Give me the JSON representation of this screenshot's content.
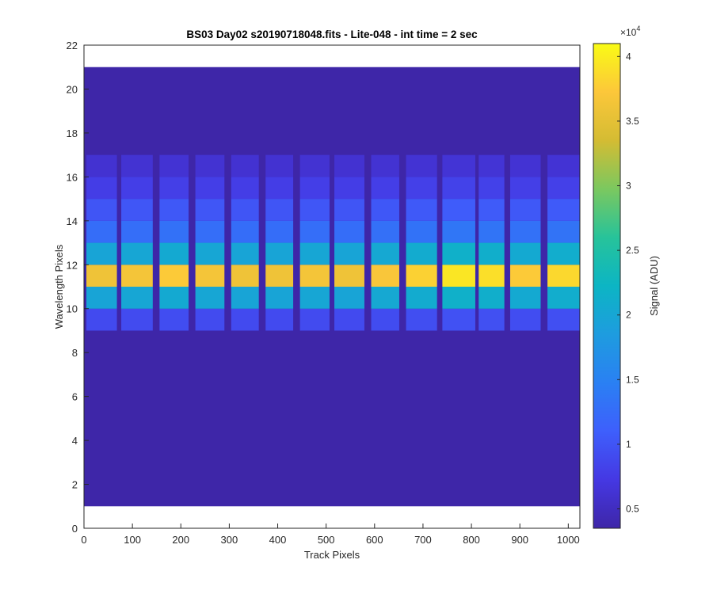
{
  "chart_data": {
    "type": "heatmap",
    "title": "BS03 Day02  s20190718048.fits - Lite-048 - int time = 2 sec",
    "xlabel": "Track Pixels",
    "ylabel": "Wavelength Pixels",
    "xlim": [
      0,
      1024
    ],
    "ylim": [
      0,
      22
    ],
    "x_ticks": [
      "0",
      "100",
      "200",
      "300",
      "400",
      "500",
      "600",
      "700",
      "800",
      "900",
      "1000"
    ],
    "y_ticks": [
      "0",
      "2",
      "4",
      "6",
      "8",
      "10",
      "12",
      "14",
      "16",
      "18",
      "20",
      "22"
    ],
    "image_extent": {
      "x": [
        0,
        1024
      ],
      "y": [
        1,
        21
      ]
    },
    "background_signal": 3500,
    "stripes": [
      {
        "x0": 5,
        "x1": 68,
        "peak": 36000
      },
      {
        "x0": 77,
        "x1": 142,
        "peak": 36500
      },
      {
        "x0": 156,
        "x1": 216,
        "peak": 37500
      },
      {
        "x0": 230,
        "x1": 290,
        "peak": 36500
      },
      {
        "x0": 304,
        "x1": 361,
        "peak": 36000
      },
      {
        "x0": 375,
        "x1": 432,
        "peak": 36000
      },
      {
        "x0": 446,
        "x1": 507,
        "peak": 36500
      },
      {
        "x0": 517,
        "x1": 579,
        "peak": 36000
      },
      {
        "x0": 593,
        "x1": 651,
        "peak": 37000
      },
      {
        "x0": 665,
        "x1": 729,
        "peak": 38000
      },
      {
        "x0": 740,
        "x1": 808,
        "peak": 39500
      },
      {
        "x0": 815,
        "x1": 868,
        "peak": 39000
      },
      {
        "x0": 880,
        "x1": 943,
        "peak": 37500
      },
      {
        "x0": 957,
        "x1": 1024,
        "peak": 38500
      }
    ],
    "row_profile": [
      {
        "y0": 9,
        "y1": 10,
        "fraction": 0.17
      },
      {
        "y0": 10,
        "y1": 11,
        "fraction": 0.5
      },
      {
        "y0": 11,
        "y1": 12,
        "fraction": 1.0
      },
      {
        "y0": 12,
        "y1": 13,
        "fraction": 0.5
      },
      {
        "y0": 13,
        "y1": 14,
        "fraction": 0.28
      },
      {
        "y0": 14,
        "y1": 15,
        "fraction": 0.2
      },
      {
        "y0": 15,
        "y1": 16,
        "fraction": 0.13
      },
      {
        "y0": 16,
        "y1": 17,
        "fraction": 0.08
      }
    ],
    "colorbar": {
      "label": "Signal (ADU)",
      "exponent_label": "×10",
      "exponent_power": "4",
      "range": [
        3500,
        41000
      ],
      "ticks": [
        {
          "value": 5000,
          "label": "0.5"
        },
        {
          "value": 10000,
          "label": "1"
        },
        {
          "value": 15000,
          "label": "1.5"
        },
        {
          "value": 20000,
          "label": "2"
        },
        {
          "value": 25000,
          "label": "2.5"
        },
        {
          "value": 30000,
          "label": "3"
        },
        {
          "value": 35000,
          "label": "3.5"
        },
        {
          "value": 40000,
          "label": "4"
        }
      ],
      "colormap": "parula"
    }
  }
}
